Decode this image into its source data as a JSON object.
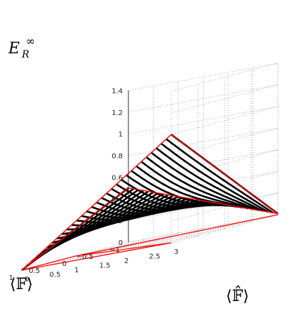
{
  "chart_data": {
    "type": "surface3d",
    "title": "",
    "zlabel": {
      "main": "E",
      "sub": "R",
      "sup": "∞"
    },
    "xlabel": "⟨𝔽⟩",
    "ylabel": "⟨𝔽̂⟩",
    "x_ticks": [
      "−1",
      "−0.5",
      "0",
      "0.5",
      "1"
    ],
    "y_ticks": [
      "0",
      "0.5",
      "1",
      "1.5",
      "2",
      "2.5",
      "3"
    ],
    "z_ticks": [
      "0",
      "0.2",
      "0.4",
      "0.6",
      "0.8",
      "1",
      "1.2",
      "1.4"
    ],
    "xlim": [
      -1,
      1
    ],
    "ylim": [
      0,
      3
    ],
    "zlim": [
      0,
      1.4
    ],
    "grid": true,
    "surface": {
      "corner_values": {
        "x=-1,y=0": 0.5,
        "x=1,y=0": 0,
        "x=-1,y=3": 0.01,
        "x=1,y=3": 1.0
      },
      "slice_count": 30,
      "line_color": "#000000",
      "boundary_color": "#ff0000"
    },
    "floor_outline_color": "#ff0000"
  }
}
